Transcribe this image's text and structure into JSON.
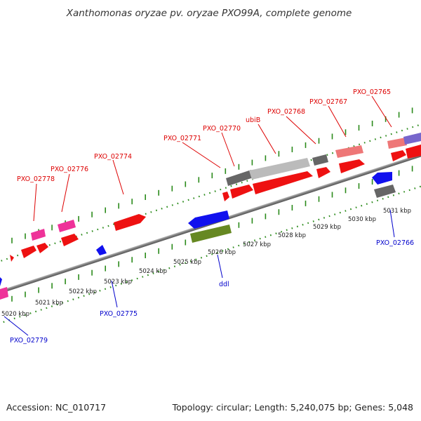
{
  "title": "Xanthomonas oryzae pv. oryzae PXO99A, complete genome",
  "footer": {
    "accession": "Accession: NC_010717",
    "topology": "Topology: circular; Length: 5,240,075 bp; Genes: 5,048"
  },
  "kbp_ticks": [
    "5020 kbp",
    "5021 kbp",
    "5022 kbp",
    "5023 kbp",
    "5024 kbp",
    "5025 kbp",
    "5026 kbp",
    "5027 kbp",
    "5028 kbp",
    "5029 kbp",
    "5030 kbp",
    "5031 kbp"
  ],
  "gene_labels_top": [
    "PXO_02778",
    "PXO_02776",
    "PXO_02774",
    "PXO_02771",
    "PXO_02770",
    "ubiB",
    "PXO_02768",
    "PXO_02767",
    "PXO_02765"
  ],
  "gene_labels_bottom": [
    "PXO_02779",
    "PXO_02775",
    "ddl",
    "PXO_02766"
  ],
  "colors": {
    "backbone": "#888888",
    "tick_dots": "#2a8a1a",
    "gene_red": "#ee1111",
    "gene_pink": "#ee3399",
    "gene_blue": "#1111ee",
    "gene_gray": "#666666",
    "gene_lightgray": "#bbbbbb",
    "gene_olive": "#668822",
    "gene_salmon": "#ee7777",
    "gene_purple": "#7766cc",
    "label_top": "#dd0000",
    "label_bottom": "#0000cc"
  }
}
